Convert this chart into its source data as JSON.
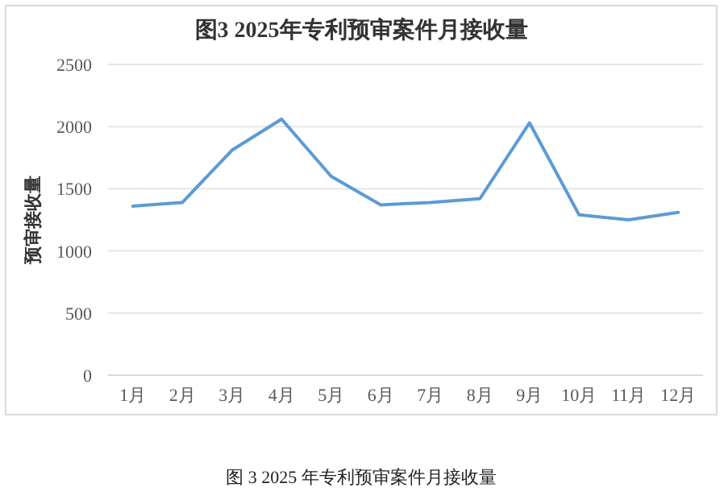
{
  "chart_data": {
    "type": "line",
    "title": "图3 2025年专利预审案件月接收量",
    "ylabel": "预审接收量",
    "categories": [
      "1月",
      "2月",
      "3月",
      "4月",
      "5月",
      "6月",
      "7月",
      "8月",
      "9月",
      "10月",
      "11月",
      "12月"
    ],
    "series": [
      {
        "color": "#5b9bd5",
        "values": [
          1360,
          1390,
          1810,
          2060,
          1600,
          1370,
          1390,
          1420,
          2030,
          1290,
          1250,
          1310
        ]
      }
    ],
    "ylim": [
      0,
      2500
    ],
    "yticks": [
      0,
      500,
      1000,
      1500,
      2000,
      2500
    ],
    "grid": "y",
    "annotations": [
      "图 3 2025 年专利预审案件月接收量"
    ]
  }
}
